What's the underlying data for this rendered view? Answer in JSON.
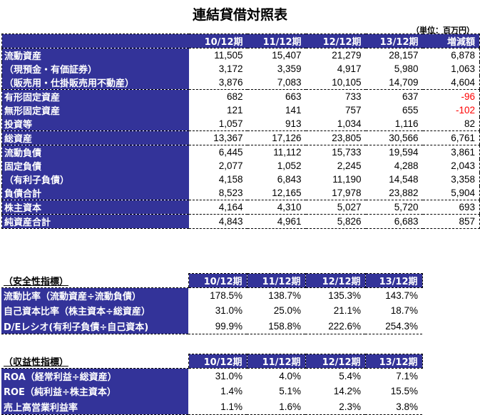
{
  "title": "連結貸借対照表",
  "unit": "（単位：百万円）",
  "balance": {
    "headers": [
      "10/12期",
      "11/12期",
      "12/12期",
      "13/12期",
      "増減額"
    ],
    "rows": [
      {
        "label": "流動資産",
        "values": [
          "11,505",
          "15,407",
          "21,279",
          "28,157",
          "6,878"
        ]
      },
      {
        "label": "（現預金・有価証券）",
        "values": [
          "3,172",
          "3,359",
          "4,917",
          "5,980",
          "1,063"
        ]
      },
      {
        "label": "（販売用・仕掛販売用不動産）",
        "values": [
          "3,876",
          "7,083",
          "10,105",
          "14,709",
          "4,604"
        ]
      },
      {
        "label": "有形固定資産",
        "values": [
          "682",
          "663",
          "733",
          "637",
          "-96"
        ]
      },
      {
        "label": "無形固定資産",
        "values": [
          "121",
          "141",
          "757",
          "655",
          "-102"
        ]
      },
      {
        "label": "投資等",
        "values": [
          "1,057",
          "913",
          "1,034",
          "1,116",
          "82"
        ]
      },
      {
        "label": "総資産",
        "values": [
          "13,367",
          "17,126",
          "23,805",
          "30,566",
          "6,761"
        ]
      },
      {
        "label": "流動負債",
        "values": [
          "6,445",
          "11,112",
          "15,733",
          "19,594",
          "3,861"
        ]
      },
      {
        "label": "固定負債",
        "values": [
          "2,077",
          "1,052",
          "2,245",
          "4,288",
          "2,043"
        ]
      },
      {
        "label": "（有利子負債）",
        "values": [
          "4,158",
          "6,843",
          "11,190",
          "14,548",
          "3,358"
        ]
      },
      {
        "label": "負債合計",
        "values": [
          "8,523",
          "12,165",
          "17,978",
          "23,882",
          "5,904"
        ]
      },
      {
        "label": "株主資本",
        "values": [
          "4,164",
          "4,310",
          "5,027",
          "5,720",
          "693"
        ]
      },
      {
        "label": "純資産合計",
        "values": [
          "4,843",
          "4,961",
          "5,826",
          "6,683",
          "857"
        ]
      }
    ]
  },
  "safety": {
    "caption": "（安全性指標）",
    "headers": [
      "10/12期",
      "11/12期",
      "12/12期",
      "13/12期"
    ],
    "rows": [
      {
        "label": "流動比率（流動資産÷流動負債）",
        "values": [
          "178.5%",
          "138.7%",
          "135.3%",
          "143.7%"
        ]
      },
      {
        "label": "自己資本比率（株主資本÷総資産）",
        "values": [
          "31.0%",
          "25.0%",
          "21.1%",
          "18.7%"
        ]
      },
      {
        "label": "D/Eレシオ(有利子負債÷自己資本)",
        "values": [
          "99.9%",
          "158.8%",
          "222.6%",
          "254.3%"
        ]
      }
    ]
  },
  "profit": {
    "caption": "（収益性指標）",
    "headers": [
      "10/12期",
      "11/12期",
      "12/12期",
      "13/12期"
    ],
    "rows": [
      {
        "label": "ROA（経常利益÷総資産）",
        "values": [
          "31.0%",
          "4.0%",
          "5.4%",
          "7.1%"
        ]
      },
      {
        "label": "ROE（純利益÷株主資本）",
        "values": [
          "1.4%",
          "5.1%",
          "14.2%",
          "15.5%"
        ]
      },
      {
        "label": "売上高営業利益率",
        "values": [
          "1.1%",
          "1.6%",
          "2.3%",
          "3.8%"
        ]
      }
    ]
  }
}
